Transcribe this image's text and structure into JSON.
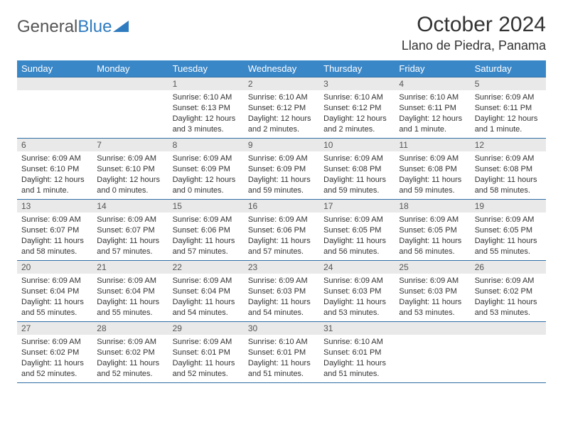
{
  "logo": {
    "text1": "General",
    "text2": "Blue"
  },
  "title": "October 2024",
  "location": "Llano de Piedra, Panama",
  "colors": {
    "header_bg": "#3a87c8",
    "header_text": "#ffffff",
    "daynum_bg": "#e9e9e9",
    "border": "#2f6fa5",
    "logo_blue": "#2f7bbf"
  },
  "day_labels": [
    "Sunday",
    "Monday",
    "Tuesday",
    "Wednesday",
    "Thursday",
    "Friday",
    "Saturday"
  ],
  "weeks": [
    [
      {
        "num": "",
        "sunrise": "",
        "sunset": "",
        "daylight": ""
      },
      {
        "num": "",
        "sunrise": "",
        "sunset": "",
        "daylight": ""
      },
      {
        "num": "1",
        "sunrise": "Sunrise: 6:10 AM",
        "sunset": "Sunset: 6:13 PM",
        "daylight": "Daylight: 12 hours and 3 minutes."
      },
      {
        "num": "2",
        "sunrise": "Sunrise: 6:10 AM",
        "sunset": "Sunset: 6:12 PM",
        "daylight": "Daylight: 12 hours and 2 minutes."
      },
      {
        "num": "3",
        "sunrise": "Sunrise: 6:10 AM",
        "sunset": "Sunset: 6:12 PM",
        "daylight": "Daylight: 12 hours and 2 minutes."
      },
      {
        "num": "4",
        "sunrise": "Sunrise: 6:10 AM",
        "sunset": "Sunset: 6:11 PM",
        "daylight": "Daylight: 12 hours and 1 minute."
      },
      {
        "num": "5",
        "sunrise": "Sunrise: 6:09 AM",
        "sunset": "Sunset: 6:11 PM",
        "daylight": "Daylight: 12 hours and 1 minute."
      }
    ],
    [
      {
        "num": "6",
        "sunrise": "Sunrise: 6:09 AM",
        "sunset": "Sunset: 6:10 PM",
        "daylight": "Daylight: 12 hours and 1 minute."
      },
      {
        "num": "7",
        "sunrise": "Sunrise: 6:09 AM",
        "sunset": "Sunset: 6:10 PM",
        "daylight": "Daylight: 12 hours and 0 minutes."
      },
      {
        "num": "8",
        "sunrise": "Sunrise: 6:09 AM",
        "sunset": "Sunset: 6:09 PM",
        "daylight": "Daylight: 12 hours and 0 minutes."
      },
      {
        "num": "9",
        "sunrise": "Sunrise: 6:09 AM",
        "sunset": "Sunset: 6:09 PM",
        "daylight": "Daylight: 11 hours and 59 minutes."
      },
      {
        "num": "10",
        "sunrise": "Sunrise: 6:09 AM",
        "sunset": "Sunset: 6:08 PM",
        "daylight": "Daylight: 11 hours and 59 minutes."
      },
      {
        "num": "11",
        "sunrise": "Sunrise: 6:09 AM",
        "sunset": "Sunset: 6:08 PM",
        "daylight": "Daylight: 11 hours and 59 minutes."
      },
      {
        "num": "12",
        "sunrise": "Sunrise: 6:09 AM",
        "sunset": "Sunset: 6:08 PM",
        "daylight": "Daylight: 11 hours and 58 minutes."
      }
    ],
    [
      {
        "num": "13",
        "sunrise": "Sunrise: 6:09 AM",
        "sunset": "Sunset: 6:07 PM",
        "daylight": "Daylight: 11 hours and 58 minutes."
      },
      {
        "num": "14",
        "sunrise": "Sunrise: 6:09 AM",
        "sunset": "Sunset: 6:07 PM",
        "daylight": "Daylight: 11 hours and 57 minutes."
      },
      {
        "num": "15",
        "sunrise": "Sunrise: 6:09 AM",
        "sunset": "Sunset: 6:06 PM",
        "daylight": "Daylight: 11 hours and 57 minutes."
      },
      {
        "num": "16",
        "sunrise": "Sunrise: 6:09 AM",
        "sunset": "Sunset: 6:06 PM",
        "daylight": "Daylight: 11 hours and 57 minutes."
      },
      {
        "num": "17",
        "sunrise": "Sunrise: 6:09 AM",
        "sunset": "Sunset: 6:05 PM",
        "daylight": "Daylight: 11 hours and 56 minutes."
      },
      {
        "num": "18",
        "sunrise": "Sunrise: 6:09 AM",
        "sunset": "Sunset: 6:05 PM",
        "daylight": "Daylight: 11 hours and 56 minutes."
      },
      {
        "num": "19",
        "sunrise": "Sunrise: 6:09 AM",
        "sunset": "Sunset: 6:05 PM",
        "daylight": "Daylight: 11 hours and 55 minutes."
      }
    ],
    [
      {
        "num": "20",
        "sunrise": "Sunrise: 6:09 AM",
        "sunset": "Sunset: 6:04 PM",
        "daylight": "Daylight: 11 hours and 55 minutes."
      },
      {
        "num": "21",
        "sunrise": "Sunrise: 6:09 AM",
        "sunset": "Sunset: 6:04 PM",
        "daylight": "Daylight: 11 hours and 55 minutes."
      },
      {
        "num": "22",
        "sunrise": "Sunrise: 6:09 AM",
        "sunset": "Sunset: 6:04 PM",
        "daylight": "Daylight: 11 hours and 54 minutes."
      },
      {
        "num": "23",
        "sunrise": "Sunrise: 6:09 AM",
        "sunset": "Sunset: 6:03 PM",
        "daylight": "Daylight: 11 hours and 54 minutes."
      },
      {
        "num": "24",
        "sunrise": "Sunrise: 6:09 AM",
        "sunset": "Sunset: 6:03 PM",
        "daylight": "Daylight: 11 hours and 53 minutes."
      },
      {
        "num": "25",
        "sunrise": "Sunrise: 6:09 AM",
        "sunset": "Sunset: 6:03 PM",
        "daylight": "Daylight: 11 hours and 53 minutes."
      },
      {
        "num": "26",
        "sunrise": "Sunrise: 6:09 AM",
        "sunset": "Sunset: 6:02 PM",
        "daylight": "Daylight: 11 hours and 53 minutes."
      }
    ],
    [
      {
        "num": "27",
        "sunrise": "Sunrise: 6:09 AM",
        "sunset": "Sunset: 6:02 PM",
        "daylight": "Daylight: 11 hours and 52 minutes."
      },
      {
        "num": "28",
        "sunrise": "Sunrise: 6:09 AM",
        "sunset": "Sunset: 6:02 PM",
        "daylight": "Daylight: 11 hours and 52 minutes."
      },
      {
        "num": "29",
        "sunrise": "Sunrise: 6:09 AM",
        "sunset": "Sunset: 6:01 PM",
        "daylight": "Daylight: 11 hours and 52 minutes."
      },
      {
        "num": "30",
        "sunrise": "Sunrise: 6:10 AM",
        "sunset": "Sunset: 6:01 PM",
        "daylight": "Daylight: 11 hours and 51 minutes."
      },
      {
        "num": "31",
        "sunrise": "Sunrise: 6:10 AM",
        "sunset": "Sunset: 6:01 PM",
        "daylight": "Daylight: 11 hours and 51 minutes."
      },
      {
        "num": "",
        "sunrise": "",
        "sunset": "",
        "daylight": ""
      },
      {
        "num": "",
        "sunrise": "",
        "sunset": "",
        "daylight": ""
      }
    ]
  ]
}
